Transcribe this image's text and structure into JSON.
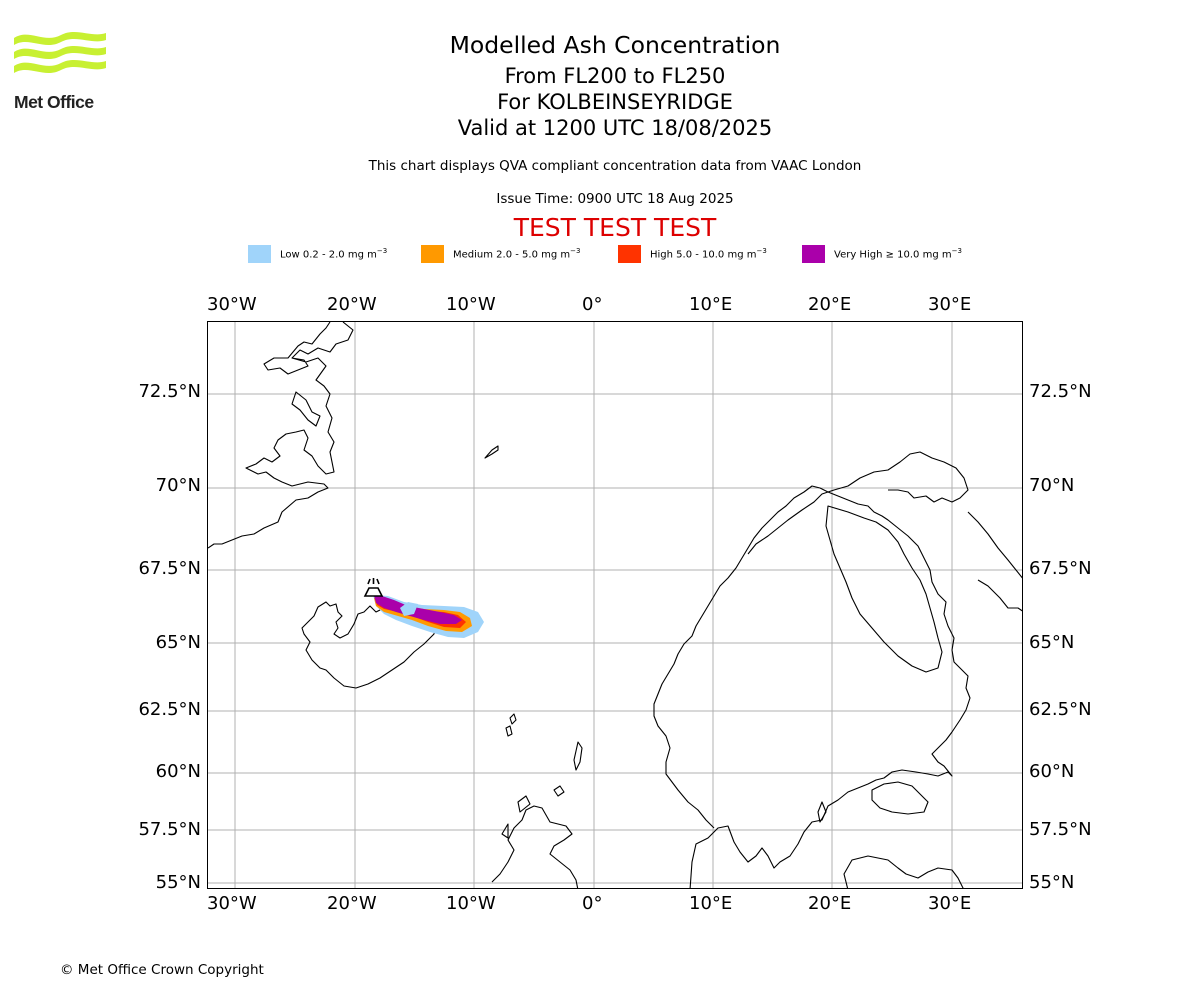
{
  "brand": {
    "name": "Met Office",
    "logo_color": "#c8f032",
    "logo_text_color": "#222222"
  },
  "header": {
    "title": "Modelled Ash Concentration",
    "levels": "From FL200 to FL250",
    "location": "For KOLBEINSEYRIDGE",
    "valid": "Valid at 1200 UTC 18/08/2025",
    "note": "This chart displays QVA compliant concentration data from VAAC London",
    "issue_time": "Issue Time: 0900 UTC 18 Aug 2025",
    "test_banner": "TEST TEST TEST",
    "test_color": "#dd0000"
  },
  "legend": [
    {
      "label": "Low 0.2 - 2.0 mg m",
      "unit_exp": "−3",
      "color": "#a0d4fa"
    },
    {
      "label": "Medium 2.0 - 5.0 mg m",
      "unit_exp": "−3",
      "color": "#ff9900"
    },
    {
      "label": "High 5.0 - 10.0 mg m",
      "unit_exp": "−3",
      "color": "#ff3300"
    },
    {
      "label": "Very High ≥ 10.0 mg m",
      "unit_exp": "−3",
      "color": "#aa00aa"
    }
  ],
  "map": {
    "lon_ticks": [
      "30°W",
      "20°W",
      "10°W",
      "0°",
      "10°E",
      "20°E",
      "30°E"
    ],
    "lat_ticks": [
      "72.5°N",
      "70°N",
      "67.5°N",
      "65°N",
      "62.5°N",
      "60°N",
      "57.5°N",
      "55°N"
    ],
    "grid": true,
    "volcano_icon": "volcano-icon"
  },
  "footer": {
    "copyright": "© Met Office Crown Copyright"
  }
}
